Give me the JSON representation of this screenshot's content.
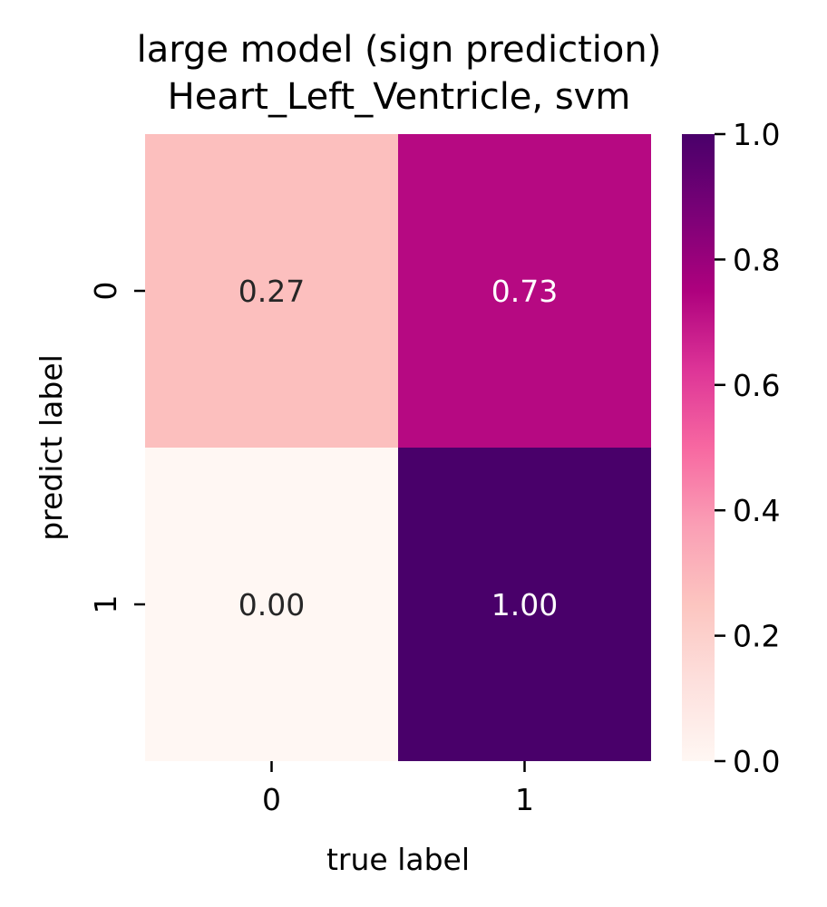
{
  "chart_data": {
    "type": "heatmap",
    "title_line1": "large model (sign prediction)",
    "title_line2": "Heart_Left_Ventricle, svm",
    "xlabel": "true label",
    "ylabel": "predict label",
    "x_categories": [
      "0",
      "1"
    ],
    "y_categories": [
      "0",
      "1"
    ],
    "values": [
      [
        0.27,
        0.73
      ],
      [
        0.0,
        1.0
      ]
    ],
    "value_labels": [
      [
        "0.27",
        "0.73"
      ],
      [
        "0.00",
        "1.00"
      ]
    ],
    "colorbar": {
      "range": [
        0.0,
        1.0
      ],
      "ticks": [
        0.0,
        0.2,
        0.4,
        0.6,
        0.8,
        1.0
      ],
      "tick_labels": [
        "0.0",
        "0.2",
        "0.4",
        "0.6",
        "0.8",
        "1.0"
      ],
      "colormap": "RdPu",
      "stops": [
        "#fff7f3",
        "#fde0dd",
        "#fcc5c0",
        "#fa9fb5",
        "#f768a1",
        "#dd3497",
        "#ae017e",
        "#7a0177",
        "#49006a"
      ]
    },
    "grid": false
  }
}
